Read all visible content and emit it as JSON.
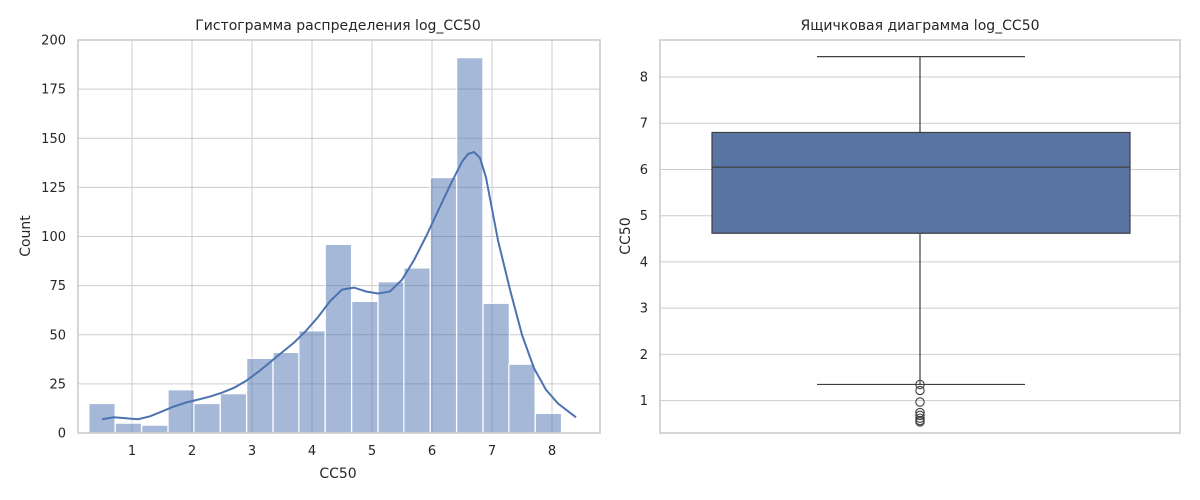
{
  "chart_data": [
    {
      "type": "bar",
      "title": "Гистограмма распределения log_CC50",
      "xlabel": "CC50",
      "ylabel": "Count",
      "xlim": [
        0.1,
        8.8
      ],
      "ylim": [
        0,
        200
      ],
      "xticks": [
        "1",
        "2",
        "3",
        "4",
        "5",
        "6",
        "7",
        "8"
      ],
      "yticks": [
        "0",
        "25",
        "50",
        "75",
        "100",
        "125",
        "150",
        "175",
        "200"
      ],
      "grid": true,
      "bin_width": 0.438,
      "bars": [
        {
          "x": 0.5,
          "count": 15
        },
        {
          "x": 0.94,
          "count": 5
        },
        {
          "x": 1.38,
          "count": 4
        },
        {
          "x": 1.82,
          "count": 22
        },
        {
          "x": 2.25,
          "count": 15
        },
        {
          "x": 2.69,
          "count": 20
        },
        {
          "x": 3.13,
          "count": 38
        },
        {
          "x": 3.57,
          "count": 41
        },
        {
          "x": 4.0,
          "count": 52
        },
        {
          "x": 4.44,
          "count": 96
        },
        {
          "x": 4.88,
          "count": 67
        },
        {
          "x": 5.32,
          "count": 77
        },
        {
          "x": 5.75,
          "count": 84
        },
        {
          "x": 6.19,
          "count": 130
        },
        {
          "x": 6.63,
          "count": 191
        },
        {
          "x": 7.07,
          "count": 66
        },
        {
          "x": 7.5,
          "count": 35
        },
        {
          "x": 7.94,
          "count": 10
        }
      ],
      "kde": [
        [
          0.5,
          7
        ],
        [
          0.7,
          8
        ],
        [
          0.9,
          7.5
        ],
        [
          1.1,
          7
        ],
        [
          1.3,
          8.5
        ],
        [
          1.5,
          11
        ],
        [
          1.7,
          13.5
        ],
        [
          1.9,
          15.5
        ],
        [
          2.1,
          17
        ],
        [
          2.3,
          18.5
        ],
        [
          2.5,
          20.5
        ],
        [
          2.7,
          23
        ],
        [
          2.9,
          26.5
        ],
        [
          3.1,
          31
        ],
        [
          3.3,
          36
        ],
        [
          3.5,
          41
        ],
        [
          3.7,
          46
        ],
        [
          3.9,
          52
        ],
        [
          4.1,
          59
        ],
        [
          4.3,
          67
        ],
        [
          4.5,
          73
        ],
        [
          4.7,
          74
        ],
        [
          4.9,
          72
        ],
        [
          5.1,
          71
        ],
        [
          5.3,
          72
        ],
        [
          5.5,
          78
        ],
        [
          5.7,
          88
        ],
        [
          5.9,
          100
        ],
        [
          6.1,
          113
        ],
        [
          6.3,
          126
        ],
        [
          6.5,
          138
        ],
        [
          6.6,
          142
        ],
        [
          6.7,
          143
        ],
        [
          6.8,
          140
        ],
        [
          6.9,
          130
        ],
        [
          7.0,
          114
        ],
        [
          7.1,
          98
        ],
        [
          7.3,
          73
        ],
        [
          7.5,
          50
        ],
        [
          7.7,
          33
        ],
        [
          7.9,
          22
        ],
        [
          8.1,
          15
        ],
        [
          8.4,
          8
        ]
      ],
      "bar_color": "#4c72b0",
      "bar_opacity": 0.5,
      "line_color": "#4c72b0"
    },
    {
      "type": "box",
      "title": "Ящичковая диаграмма log_CC50",
      "ylabel": "CC50",
      "ylim": [
        0.3,
        8.8
      ],
      "yticks": [
        "1",
        "2",
        "3",
        "4",
        "5",
        "6",
        "7",
        "8"
      ],
      "grid": true,
      "box": {
        "whisker_low": 1.35,
        "q1": 4.62,
        "median": 6.05,
        "q3": 6.8,
        "whisker_high": 8.44
      },
      "outliers": [
        1.35,
        1.22,
        0.97,
        0.74,
        0.68,
        0.62,
        0.57,
        0.54
      ],
      "box_color": "#5875a4",
      "line_color": "#3f3f3f"
    }
  ]
}
